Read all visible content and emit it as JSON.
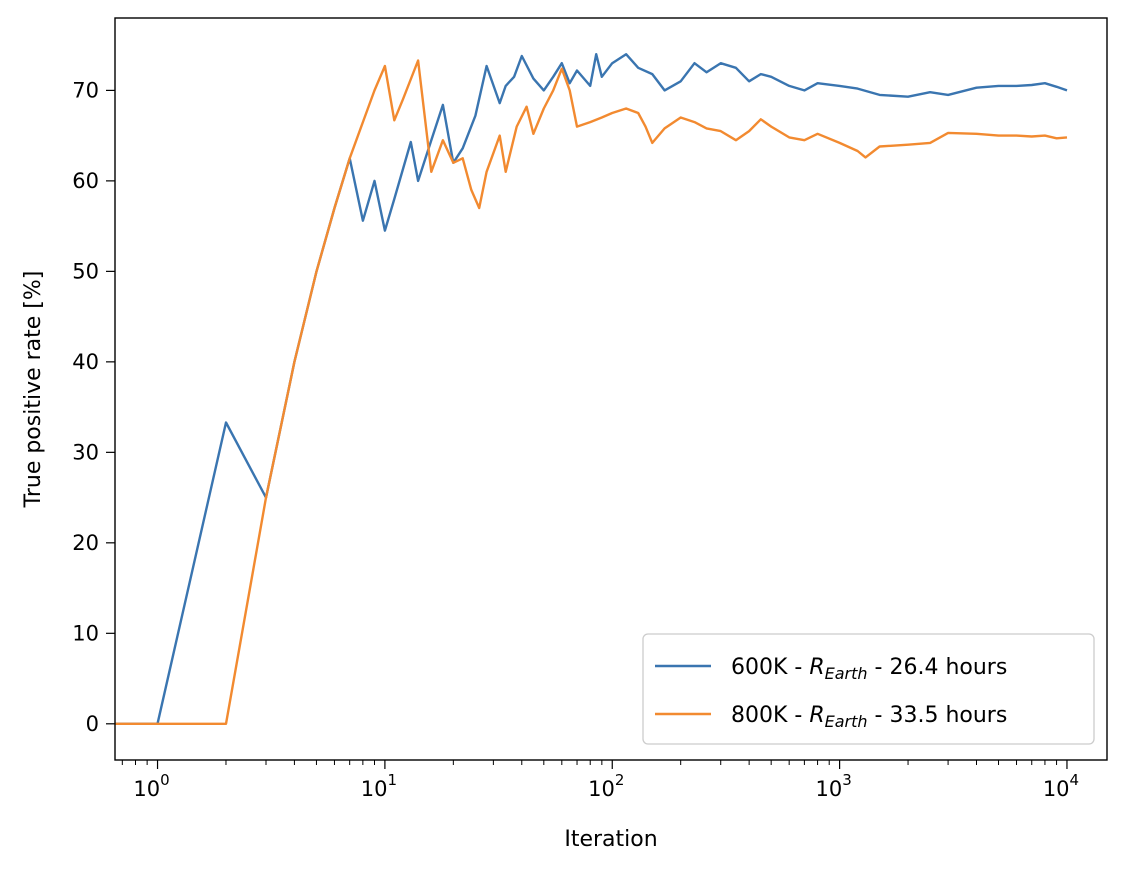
{
  "chart_data": {
    "type": "line",
    "title": "",
    "xlabel": "Iteration",
    "ylabel": "True positive rate [%]",
    "xscale": "log",
    "xlim": [
      0.65,
      15000
    ],
    "ylim": [
      -4,
      78
    ],
    "x_ticks": [
      {
        "value": 1,
        "base": "10",
        "exp": "0"
      },
      {
        "value": 10,
        "base": "10",
        "exp": "1"
      },
      {
        "value": 100,
        "base": "10",
        "exp": "2"
      },
      {
        "value": 1000,
        "base": "10",
        "exp": "3"
      },
      {
        "value": 10000,
        "base": "10",
        "exp": "4"
      }
    ],
    "y_ticks": [
      0,
      10,
      20,
      30,
      40,
      50,
      60,
      70
    ],
    "legend_position": "lower-right",
    "series": [
      {
        "name": "600K - R_Earth - 26.4 hours",
        "legend_prefix": "600K - ",
        "legend_symbol": "R",
        "legend_subscript": "Earth",
        "legend_suffix": " - 26.4 hours",
        "color": "#3a75b0",
        "x": [
          0.65,
          1,
          2,
          3,
          4,
          5,
          6,
          7,
          8,
          9,
          10,
          11,
          13,
          14,
          16,
          18,
          20,
          22,
          25,
          28,
          32,
          34,
          37,
          40,
          45,
          50,
          55,
          60,
          65,
          70,
          80,
          85,
          90,
          100,
          115,
          130,
          150,
          170,
          200,
          230,
          260,
          300,
          350,
          400,
          450,
          500,
          600,
          700,
          800,
          1000,
          1200,
          1500,
          2000,
          2500,
          3000,
          4000,
          5000,
          6000,
          7000,
          8000,
          9000,
          10000
        ],
        "y": [
          0,
          0,
          33.3,
          25,
          40,
          50,
          57,
          62.5,
          55.6,
          60,
          54.5,
          58,
          64.3,
          60,
          64.5,
          68.4,
          62,
          63.6,
          67.2,
          72.7,
          68.6,
          70.5,
          71.5,
          73.8,
          71.3,
          70,
          71.5,
          73,
          70.8,
          72.2,
          70.5,
          74,
          71.5,
          73,
          74,
          72.5,
          71.8,
          70,
          71,
          73,
          72,
          73,
          72.5,
          71,
          71.8,
          71.5,
          70.5,
          70,
          70.8,
          70.5,
          70.2,
          69.5,
          69.3,
          69.8,
          69.5,
          70.3,
          70.5,
          70.5,
          70.6,
          70.8,
          70.4,
          70
        ]
      },
      {
        "name": "800K - R_Earth - 33.5 hours",
        "legend_prefix": "800K - ",
        "legend_symbol": "R",
        "legend_subscript": "Earth",
        "legend_suffix": " - 33.5 hours",
        "color": "#f28a30",
        "x": [
          0.65,
          1,
          2,
          3,
          4,
          5,
          6,
          7,
          8,
          9,
          10,
          11,
          12,
          14,
          16,
          18,
          20,
          22,
          24,
          26,
          28,
          32,
          34,
          38,
          42,
          45,
          50,
          55,
          60,
          65,
          70,
          80,
          90,
          100,
          115,
          130,
          140,
          150,
          170,
          200,
          230,
          260,
          300,
          350,
          400,
          450,
          500,
          600,
          700,
          800,
          1000,
          1200,
          1300,
          1500,
          2000,
          2500,
          3000,
          4000,
          5000,
          6000,
          7000,
          8000,
          9000,
          10000
        ],
        "y": [
          0,
          0,
          0,
          25,
          40,
          50,
          57,
          62.5,
          66.5,
          70,
          72.7,
          66.7,
          69,
          73.3,
          61,
          64.5,
          62,
          62.5,
          59,
          57,
          61,
          65,
          61,
          66,
          68.2,
          65.2,
          68,
          70,
          72.4,
          70,
          66,
          66.5,
          67,
          67.5,
          68,
          67.5,
          66,
          64.2,
          65.8,
          67,
          66.5,
          65.8,
          65.5,
          64.5,
          65.5,
          66.8,
          66,
          64.8,
          64.5,
          65.2,
          64.2,
          63.3,
          62.6,
          63.8,
          64,
          64.2,
          65.3,
          65.2,
          65,
          65,
          64.9,
          65,
          64.7,
          64.8
        ]
      }
    ]
  }
}
